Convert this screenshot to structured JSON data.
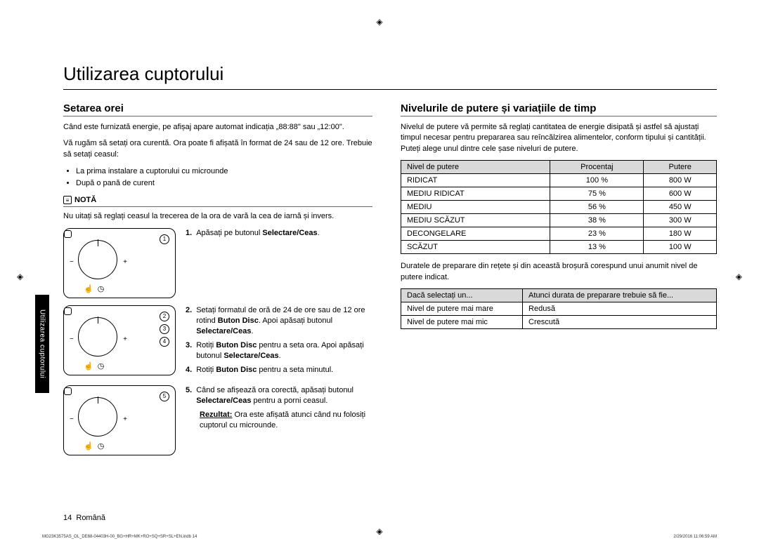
{
  "title": "Utilizarea cuptorului",
  "sideTab": "Utilizarea cuptorului",
  "leftSection": {
    "heading": "Setarea orei",
    "intro1": "Când este furnizată energie, pe afișaj apare automat indicația „88:88\" sau „12:00\".",
    "intro2": "Vă rugăm să setați ora curentă. Ora poate fi afișată în format de 24 sau de 12 ore. Trebuie să setați ceasul:",
    "bullets": [
      "La prima instalare a cuptorului cu microunde",
      "După o pană de curent"
    ],
    "noteLabel": "NOTĂ",
    "noteText": "Nu uitați să reglați ceasul la trecerea de la ora de vară la cea de iarnă și invers.",
    "steps": [
      {
        "badges": [
          "1"
        ],
        "items": [
          {
            "n": "1.",
            "text": "Apăsați pe butonul ",
            "bold1": "Selectare/Ceas",
            "after1": "."
          }
        ]
      },
      {
        "badges": [
          "2",
          "3",
          "4"
        ],
        "items": [
          {
            "n": "2.",
            "text": "Setați formatul de oră de 24 de ore sau de 12 ore rotind ",
            "bold1": "Buton Disc",
            "after1": ". Apoi apăsați butonul ",
            "bold2": "Selectare/Ceas",
            "after2": "."
          },
          {
            "n": "3.",
            "text": "Rotiți ",
            "bold1": "Buton Disc",
            "after1": " pentru a seta ora. Apoi apăsați butonul ",
            "bold2": "Selectare/Ceas",
            "after2": "."
          },
          {
            "n": "4.",
            "text": "Rotiți ",
            "bold1": "Buton Disc",
            "after1": " pentru a seta minutul."
          }
        ]
      },
      {
        "badges": [
          "5"
        ],
        "items": [
          {
            "n": "5.",
            "text": "Când se afișează ora corectă, apăsați butonul ",
            "bold1": "Selectare/Ceas",
            "after1": " pentru a porni ceasul."
          }
        ],
        "resultLabel": "Rezultat:",
        "resultText": "Ora este afișată atunci când nu folosiți cuptorul cu microunde."
      }
    ]
  },
  "rightSection": {
    "heading": "Nivelurile de putere și variațiile de timp",
    "intro": "Nivelul de putere vă permite să reglați cantitatea de energie disipată și astfel să ajustați timpul necesar pentru prepararea sau reîncălzirea alimentelor, conform tipului și cantității. Puteți alege unul dintre cele șase niveluri de putere.",
    "powerTable": {
      "headers": [
        "Nivel de putere",
        "Procentaj",
        "Putere"
      ],
      "rows": [
        [
          "RIDICAT",
          "100 %",
          "800 W"
        ],
        [
          "MEDIU RIDICAT",
          "75 %",
          "600 W"
        ],
        [
          "MEDIU",
          "56 %",
          "450 W"
        ],
        [
          "MEDIU SCĂZUT",
          "38 %",
          "300 W"
        ],
        [
          "DECONGELARE",
          "23 %",
          "180 W"
        ],
        [
          "SCĂZUT",
          "13 %",
          "100 W"
        ]
      ]
    },
    "midText": "Duratele de preparare din rețete și din această broșură corespund unui anumit nivel de putere indicat.",
    "selectTable": {
      "headers": [
        "Dacă selectați un...",
        "Atunci durata de preparare trebuie să fie..."
      ],
      "rows": [
        [
          "Nivel de putere mai mare",
          "Redusă"
        ],
        [
          "Nivel de putere mai mic",
          "Crescută"
        ]
      ]
    }
  },
  "footer": {
    "pageNum": "14",
    "lang": "Română",
    "docCode": "MG23K3575AS_OL_DE68-04403H-00_BG+HR+MK+RO+SQ+SR+SL+EN.indb   14",
    "timestamp": "2/29/2016   11:06:59 AM"
  },
  "colors": {
    "tableHeaderBg": "#d9d9d9",
    "text": "#000000",
    "bg": "#ffffff"
  }
}
